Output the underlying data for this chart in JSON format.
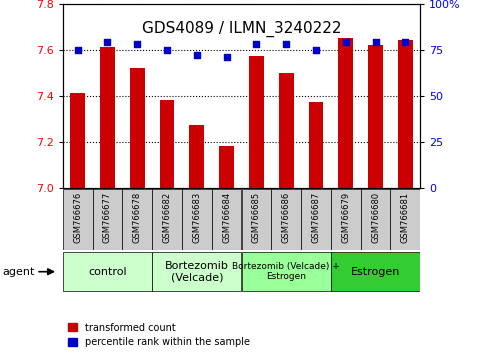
{
  "title": "GDS4089 / ILMN_3240222",
  "samples": [
    "GSM766676",
    "GSM766677",
    "GSM766678",
    "GSM766682",
    "GSM766683",
    "GSM766684",
    "GSM766685",
    "GSM766686",
    "GSM766687",
    "GSM766679",
    "GSM766680",
    "GSM766681"
  ],
  "transformed_counts": [
    7.41,
    7.61,
    7.52,
    7.38,
    7.27,
    7.18,
    7.57,
    7.5,
    7.37,
    7.65,
    7.62,
    7.64
  ],
  "percentile_ranks": [
    75,
    79,
    78,
    75,
    72,
    71,
    78,
    78,
    75,
    79,
    79,
    79
  ],
  "ylim_left": [
    7.0,
    7.8
  ],
  "ylim_right": [
    0,
    100
  ],
  "yticks_left": [
    7.0,
    7.2,
    7.4,
    7.6,
    7.8
  ],
  "yticks_right": [
    0,
    25,
    50,
    75,
    100
  ],
  "group_labels": [
    "control",
    "Bortezomib\n(Velcade)",
    "Bortezomib (Velcade) +\nEstrogen",
    "Estrogen"
  ],
  "group_starts": [
    0,
    3,
    6,
    9
  ],
  "group_ends": [
    3,
    6,
    9,
    12
  ],
  "group_colors": [
    "#ccffcc",
    "#ccffcc",
    "#99ff99",
    "#33cc33"
  ],
  "bar_color": "#cc0000",
  "dot_color": "#0000cc",
  "bg_color": "#ffffff",
  "tick_cell_color": "#cccccc",
  "legend_bar_label": "transformed count",
  "legend_dot_label": "percentile rank within the sample",
  "agent_label": "agent",
  "title_fontsize": 11,
  "tick_fontsize": 8,
  "sample_fontsize": 6
}
